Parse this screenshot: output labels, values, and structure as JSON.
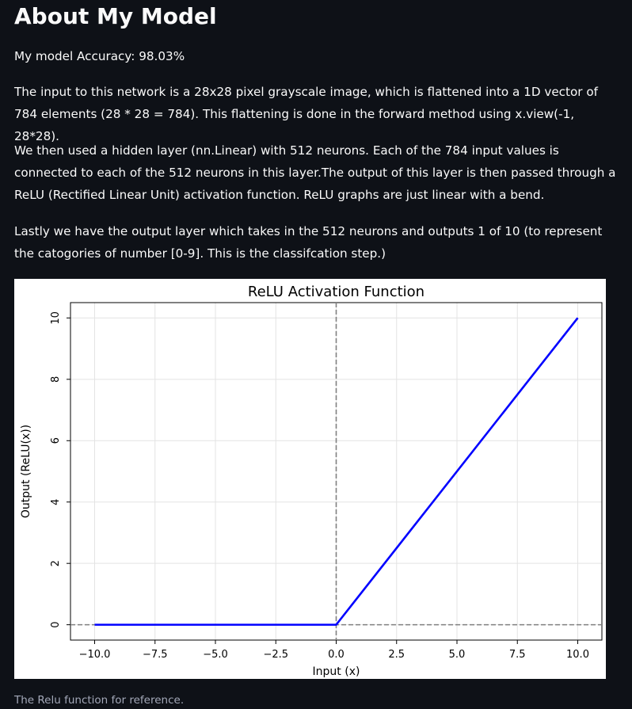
{
  "header": {
    "title": "About My Model"
  },
  "body": {
    "accuracy": "My model Accuracy: 98.03%",
    "paragraph_1": "The input to this network is a 28x28 pixel grayscale image, which is flattened into a 1D vector of 784 elements (28 * 28 = 784). This flattening is done in the forward method using x.view(-1, 28*28).",
    "paragraph_2": "We then used a hidden layer (nn.Linear) with 512 neurons. Each of the 784 input values is connected to each of the 512 neurons in this layer.The output of this layer is then passed through a ReLU (Rectified Linear Unit) activation function. ReLU graphs are just linear with a bend.",
    "paragraph_3": "Lastly we have the output layer which takes in the 512 neurons and outputs 1 of 10 (to represent the catogories of number [0-9]. This is the classifcation step.)"
  },
  "figure": {
    "caption": "The Relu function for reference."
  },
  "chart_data": {
    "type": "line",
    "title": "ReLU Activation Function",
    "xlabel": "Input (x)",
    "ylabel": "Output (ReLU(x))",
    "xlim": [
      -11,
      11
    ],
    "ylim": [
      -0.5,
      10.5
    ],
    "xticks": [
      -10.0,
      -7.5,
      -5.0,
      -2.5,
      0.0,
      2.5,
      5.0,
      7.5,
      10.0
    ],
    "xtick_labels": [
      "−10.0",
      "−7.5",
      "−5.0",
      "−2.5",
      "0.0",
      "2.5",
      "5.0",
      "7.5",
      "10.0"
    ],
    "yticks": [
      0,
      2,
      4,
      6,
      8,
      10
    ],
    "ytick_labels": [
      "0",
      "2",
      "4",
      "6",
      "8",
      "10"
    ],
    "grid": true,
    "series": [
      {
        "x": [
          -10,
          0,
          10
        ],
        "y": [
          0,
          0,
          10
        ],
        "color": "#0000ff"
      }
    ],
    "reference_lines": {
      "vertical_x": 0,
      "horizontal_y": 0,
      "color": "#808080",
      "style": "dashed"
    }
  }
}
